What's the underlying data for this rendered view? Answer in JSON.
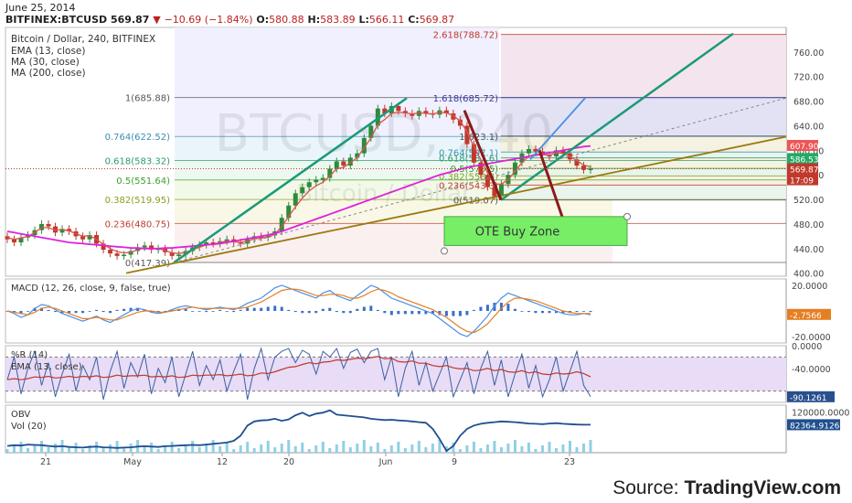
{
  "header": {
    "date": "June 25, 2014",
    "symbol": "BITFINEX:BTCUSD",
    "last": "569.87",
    "change": "−10.69 (−1.84%)",
    "open_label": "O:",
    "open": "580.88",
    "high_label": "H:",
    "high": "583.89",
    "low_label": "L:",
    "low": "566.11",
    "close_label": "C:",
    "close": "569.87"
  },
  "legend": {
    "title": "Bitcoin / Dollar, 240, BITFINEX",
    "lines": [
      "EMA (13, close)",
      "MA (30, close)",
      "MA (200, close)"
    ]
  },
  "watermark": {
    "main": "BTCUSD, 240",
    "sub": "Bitcoin / Dollar"
  },
  "source": {
    "prefix": "Source: ",
    "brand": "TradingView.com"
  },
  "colors": {
    "up": "#2e8b3a",
    "down": "#c0392b",
    "ema": "#d9534f",
    "ma200": "#dd22dd",
    "trend": "#1a9a78",
    "support": "#9a7a10",
    "ote": "#77ee66"
  },
  "chart_data": [
    {
      "type": "candlestick",
      "title": "Bitcoin / Dollar, 240, BITFINEX",
      "x_ticks": [
        "21",
        "May",
        "12",
        "20",
        "Jun",
        "9",
        "23"
      ],
      "y_ticks": [
        400,
        440,
        480,
        520,
        560,
        600,
        640,
        680,
        720,
        760
      ],
      "ylim": [
        395,
        800
      ],
      "price_labels": [
        {
          "value": "607.90",
          "color": "#e55"
        },
        {
          "value": "586.53",
          "color": "#2a6"
        },
        {
          "value": "569.87",
          "color": "#c0392b"
        },
        {
          "value": "17:09",
          "color": "#c0392b"
        }
      ],
      "fib_left": [
        {
          "text": "1(685.88)",
          "value": 685.88
        },
        {
          "text": "0.764(622.52)",
          "value": 622.52
        },
        {
          "text": "0.618(583.32)",
          "value": 583.32
        },
        {
          "text": "0.5(551.64)",
          "value": 551.64
        },
        {
          "text": "0.382(519.95)",
          "value": 519.95
        },
        {
          "text": "0.236(480.75)",
          "value": 480.75
        },
        {
          "text": "0(417.39)",
          "value": 417.39
        }
      ],
      "fib_right": [
        {
          "text": "2.618(788.72)",
          "value": 788.72
        },
        {
          "text": "1.618(685.72)",
          "value": 685.72
        },
        {
          "text": "1(623.1)",
          "value": 623.1
        },
        {
          "text": "0.764(597.1)",
          "value": 597.1
        },
        {
          "text": "0.618(587.6)",
          "value": 587.6
        },
        {
          "text": "0.5(570.5)",
          "value": 570.5
        },
        {
          "text": "0.382(558.3)",
          "value": 558.3
        },
        {
          "text": "0.236(543.3)",
          "value": 543.3
        },
        {
          "text": "0(519.07)",
          "value": 519.07
        }
      ],
      "annotations": [
        {
          "text": "OTE Buy Zone",
          "low": 445,
          "high": 492
        }
      ],
      "close_series": [
        455,
        450,
        458,
        462,
        470,
        480,
        476,
        466,
        472,
        468,
        460,
        455,
        462,
        448,
        438,
        432,
        428,
        430,
        436,
        442,
        445,
        438,
        440,
        434,
        428,
        430,
        436,
        442,
        446,
        450,
        448,
        452,
        455,
        450,
        448,
        455,
        460,
        458,
        462,
        468,
        490,
        510,
        530,
        540,
        548,
        552,
        555,
        570,
        582,
        575,
        588,
        595,
        620,
        640,
        668,
        660,
        672,
        664,
        660,
        656,
        664,
        660,
        658,
        665,
        660,
        650,
        640,
        610,
        580,
        560,
        540,
        525,
        545,
        560,
        580,
        595,
        602,
        598,
        592,
        590,
        600,
        595,
        585,
        575,
        568,
        570
      ],
      "ema_series": [
        458,
        455,
        457,
        460,
        466,
        474,
        474,
        470,
        471,
        469,
        464,
        460,
        461,
        455,
        447,
        440,
        435,
        433,
        434,
        438,
        441,
        440,
        440,
        437,
        433,
        432,
        434,
        438,
        442,
        446,
        447,
        450,
        452,
        451,
        450,
        452,
        456,
        457,
        459,
        463,
        476,
        492,
        508,
        522,
        534,
        542,
        548,
        558,
        570,
        572,
        580,
        588,
        604,
        620,
        642,
        650,
        660,
        662,
        661,
        659,
        661,
        660,
        659,
        662,
        661,
        656,
        648,
        630,
        606,
        585,
        563,
        545,
        545,
        552,
        566,
        580,
        590,
        594,
        593,
        592,
        596,
        595,
        590,
        583,
        576,
        573
      ],
      "ma200_series": [
        468,
        466,
        464,
        462,
        460,
        458,
        456,
        454,
        452,
        450,
        449,
        448,
        447,
        446,
        445,
        444,
        443,
        442,
        441,
        441,
        440,
        440,
        440,
        441,
        441,
        442,
        443,
        444,
        445,
        446,
        447,
        448,
        450,
        452,
        454,
        456,
        458,
        460,
        462,
        465,
        468,
        472,
        476,
        480,
        484,
        488,
        492,
        496,
        500,
        504,
        508,
        512,
        516,
        520,
        524,
        528,
        532,
        536,
        540,
        544,
        548,
        552,
        556,
        560,
        563,
        566,
        569,
        572,
        574,
        576,
        578,
        580,
        582,
        584,
        586,
        588,
        590,
        592,
        594,
        596,
        598,
        600,
        602,
        604,
        606,
        607
      ]
    },
    {
      "type": "line",
      "title": "MACD (12, 26, close, 9, false, true)",
      "y_ticks": [
        "20.0000",
        "0.0000",
        "-20.0000"
      ],
      "ylim": [
        -25,
        25
      ],
      "last_value": "-2.7566",
      "macd_series": [
        0,
        -2,
        -5,
        -3,
        2,
        5,
        4,
        1,
        -2,
        -4,
        -6,
        -8,
        -6,
        -4,
        -7,
        -9,
        -6,
        -3,
        0,
        2,
        1,
        -1,
        -2,
        -1,
        1,
        3,
        4,
        3,
        2,
        1,
        2,
        3,
        2,
        1,
        3,
        6,
        8,
        10,
        14,
        18,
        20,
        18,
        16,
        14,
        12,
        10,
        14,
        16,
        12,
        10,
        8,
        12,
        16,
        20,
        18,
        14,
        10,
        8,
        6,
        4,
        2,
        0,
        -2,
        -6,
        -10,
        -14,
        -18,
        -20,
        -16,
        -10,
        -4,
        4,
        10,
        14,
        12,
        10,
        8,
        6,
        4,
        2,
        0,
        -2,
        -3,
        -3,
        -2,
        -3
      ],
      "signal_series": [
        0,
        -1,
        -2,
        -3,
        -1,
        2,
        3,
        2,
        0,
        -2,
        -4,
        -6,
        -6,
        -5,
        -6,
        -7,
        -7,
        -5,
        -3,
        -1,
        0,
        0,
        -1,
        -1,
        0,
        1,
        2,
        3,
        2,
        2,
        2,
        2,
        2,
        2,
        2,
        3,
        5,
        7,
        10,
        13,
        16,
        17,
        17,
        16,
        14,
        12,
        12,
        13,
        13,
        12,
        10,
        10,
        12,
        15,
        17,
        16,
        14,
        11,
        9,
        7,
        5,
        3,
        1,
        -2,
        -5,
        -9,
        -13,
        -16,
        -17,
        -14,
        -10,
        -4,
        2,
        7,
        10,
        10,
        9,
        8,
        6,
        4,
        2,
        0,
        -1,
        -2,
        -2,
        -2
      ]
    },
    {
      "type": "line",
      "title": "%R (14)",
      "subtitle": "EMA (13, close)",
      "y_ticks": [
        "0.0000",
        "-40.0000",
        "-80.0000"
      ],
      "ylim": [
        -100,
        0
      ],
      "last_value": "-90.1261",
      "wr_series": [
        -60,
        -20,
        -85,
        -40,
        -10,
        -70,
        -30,
        -90,
        -50,
        -15,
        -80,
        -35,
        -60,
        -20,
        -95,
        -45,
        -10,
        -75,
        -30,
        -55,
        -15,
        -85,
        -40,
        -65,
        -20,
        -90,
        -50,
        -10,
        -70,
        -35,
        -60,
        -25,
        -80,
        -45,
        -15,
        -95,
        -40,
        -5,
        -60,
        -20,
        -10,
        -5,
        -30,
        -8,
        -15,
        -50,
        -10,
        -20,
        -5,
        -40,
        -12,
        -6,
        -30,
        -10,
        -5,
        -60,
        -20,
        -90,
        -40,
        -10,
        -70,
        -30,
        -80,
        -50,
        -20,
        -90,
        -60,
        -30,
        -85,
        -40,
        -10,
        -70,
        -25,
        -90,
        -50,
        -15,
        -75,
        -35,
        -90,
        -60,
        -20,
        -80,
        -45,
        -10,
        -70,
        -90
      ],
      "ema_series": [
        -60,
        -58,
        -60,
        -58,
        -55,
        -56,
        -54,
        -57,
        -56,
        -54,
        -56,
        -54,
        -55,
        -53,
        -56,
        -55,
        -52,
        -54,
        -53,
        -53,
        -52,
        -55,
        -54,
        -55,
        -53,
        -56,
        -55,
        -52,
        -53,
        -52,
        -52,
        -51,
        -53,
        -52,
        -50,
        -53,
        -52,
        -48,
        -49,
        -46,
        -42,
        -38,
        -37,
        -33,
        -30,
        -32,
        -29,
        -28,
        -25,
        -26,
        -24,
        -22,
        -23,
        -21,
        -19,
        -23,
        -22,
        -28,
        -29,
        -27,
        -31,
        -31,
        -35,
        -37,
        -35,
        -39,
        -41,
        -40,
        -44,
        -43,
        -40,
        -44,
        -42,
        -46,
        -47,
        -44,
        -48,
        -46,
        -50,
        -51,
        -48,
        -50,
        -49,
        -46,
        -49,
        -55
      ]
    },
    {
      "type": "line",
      "title": "OBV",
      "subtitle": "Vol (20)",
      "y_ticks": [
        "120000.0000",
        "80000.0000"
      ],
      "ylim": [
        0,
        140000
      ],
      "last_value": "82364.9126",
      "obv_series": [
        20000,
        22000,
        21000,
        24000,
        23000,
        22000,
        20000,
        18000,
        19000,
        17000,
        16000,
        15000,
        17000,
        18000,
        16000,
        15000,
        14000,
        15000,
        16000,
        18000,
        19000,
        18000,
        17000,
        19000,
        20000,
        21000,
        22000,
        23000,
        22000,
        24000,
        26000,
        28000,
        30000,
        35000,
        50000,
        80000,
        92000,
        95000,
        96000,
        100000,
        94000,
        98000,
        110000,
        118000,
        108000,
        115000,
        118000,
        125000,
        112000,
        110000,
        108000,
        106000,
        104000,
        100000,
        98000,
        96000,
        97000,
        95000,
        94000,
        92000,
        90000,
        88000,
        70000,
        40000,
        5000,
        20000,
        50000,
        70000,
        80000,
        85000,
        88000,
        90000,
        92000,
        91000,
        90000,
        88000,
        86000,
        85000,
        84000,
        86000,
        87000,
        85000,
        84000,
        83000,
        82500,
        82365
      ]
    }
  ]
}
